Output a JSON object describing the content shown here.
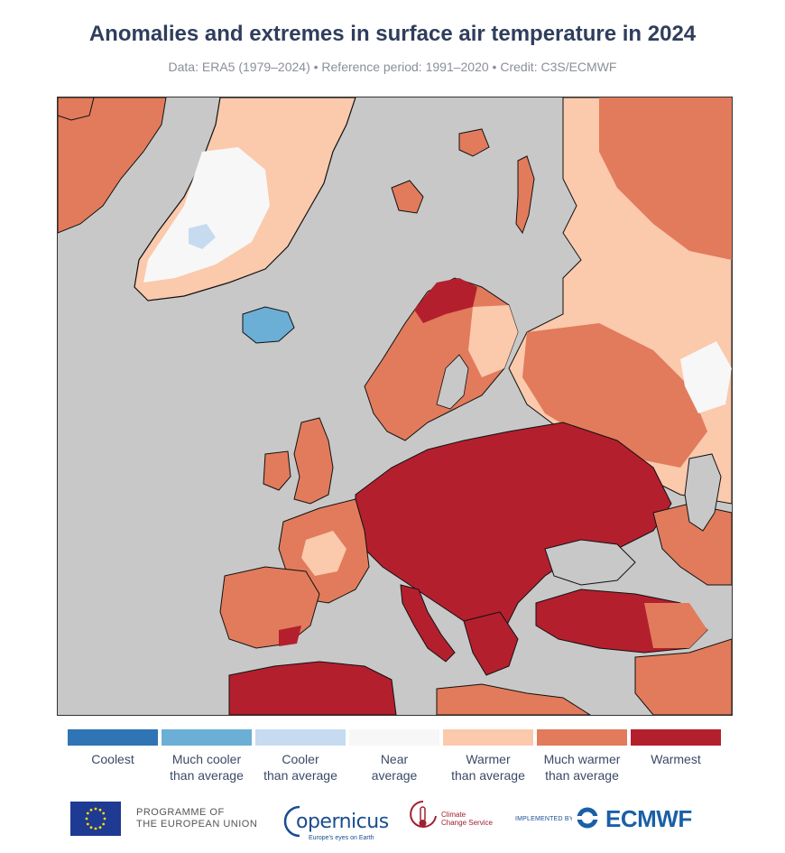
{
  "header": {
    "title": "Anomalies and extremes in surface air temperature in 2024",
    "subtitle": "Data: ERA5 (1979–2024) • Reference period: 1991–2020 • Credit: C3S/ECMWF"
  },
  "colors": {
    "sea": "#c8c8c8",
    "coolest": "#2f74b5",
    "much_cooler": "#6baed6",
    "cooler": "#c6dbef",
    "near": "#f7f7f7",
    "warmer": "#fbc9ac",
    "much_warmer": "#e17b5c",
    "warmest": "#b41f2e"
  },
  "legend": [
    {
      "label": "Coolest",
      "color": "#2f74b5"
    },
    {
      "label": "Much cooler\nthan average",
      "color": "#6baed6"
    },
    {
      "label": "Cooler\nthan average",
      "color": "#c6dbef"
    },
    {
      "label": "Near\naverage",
      "color": "#f7f7f7"
    },
    {
      "label": "Warmer\nthan average",
      "color": "#fbc9ac"
    },
    {
      "label": "Much warmer\nthan average",
      "color": "#e17b5c"
    },
    {
      "label": "Warmest",
      "color": "#b41f2e"
    }
  ],
  "footer": {
    "eu_programme": "PROGRAMME OF\nTHE EUROPEAN UNION",
    "copernicus": "opernicus",
    "copernicus_tagline": "Europe's eyes on Earth",
    "c3s": "Climate\nChange Service",
    "implemented_by": "IMPLEMENTED BY",
    "ecmwf": "ECMWF"
  }
}
